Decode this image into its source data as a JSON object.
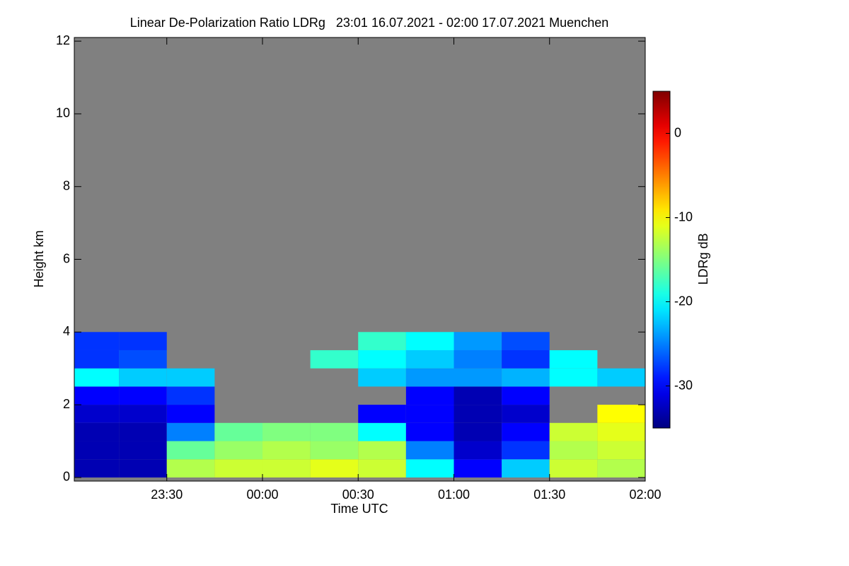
{
  "chart_data": {
    "type": "heatmap",
    "title": "Linear De-Polarization Ratio LDRg   23:01 16.07.2021 - 02:00 17.07.2021 Muenchen",
    "x_label": "Time UTC",
    "y_label": "Height km",
    "colorbar_label": "LDRg dB",
    "xlim": [
      "23:01",
      "02:00"
    ],
    "xticks": [
      "23:30",
      "00:00",
      "00:30",
      "01:00",
      "01:30",
      "02:00"
    ],
    "ylim": [
      -0.1,
      12.1
    ],
    "yticks": [
      0,
      2,
      4,
      6,
      8,
      10,
      12
    ],
    "clim": [
      -35,
      5
    ],
    "cticks": [
      -30,
      -20,
      -10,
      0
    ],
    "colormap": "jet",
    "no_data_color": "#808080",
    "x_edges": [
      "23:01",
      "23:15",
      "23:30",
      "23:45",
      "00:00",
      "00:15",
      "00:30",
      "00:45",
      "01:00",
      "01:15",
      "01:30",
      "01:45",
      "02:00"
    ],
    "y_edges": [
      0,
      0.5,
      1,
      1.5,
      2,
      2.5,
      3,
      3.5,
      4,
      4.5
    ],
    "values": [
      [
        -33,
        -33,
        -13,
        -12,
        -12,
        -11,
        -12,
        -20,
        -30,
        -22,
        -12,
        -13
      ],
      [
        -33,
        -33,
        -16,
        -14,
        -13,
        -14,
        -13,
        -25,
        -32,
        -28,
        -13,
        -12
      ],
      [
        -33,
        -33,
        -25,
        -16,
        -15,
        -15,
        -20,
        -30,
        -33,
        -30,
        -12,
        -11
      ],
      [
        -32,
        -32,
        -30,
        null,
        null,
        null,
        -30,
        -30,
        -33,
        -32,
        null,
        -10
      ],
      [
        -30,
        -30,
        -28,
        null,
        null,
        null,
        null,
        -30,
        -33,
        -30,
        null,
        null
      ],
      [
        -20,
        -22,
        -22,
        null,
        null,
        null,
        -22,
        -24,
        -24,
        -23,
        -20,
        -22
      ],
      [
        -28,
        -27,
        null,
        null,
        null,
        -18,
        -20,
        -22,
        -25,
        -28,
        -20,
        null
      ],
      [
        -28,
        -28,
        null,
        null,
        null,
        null,
        -18,
        -20,
        -24,
        -27,
        null,
        null
      ],
      [
        null,
        null,
        null,
        null,
        null,
        null,
        null,
        null,
        null,
        null,
        null,
        null
      ]
    ]
  }
}
